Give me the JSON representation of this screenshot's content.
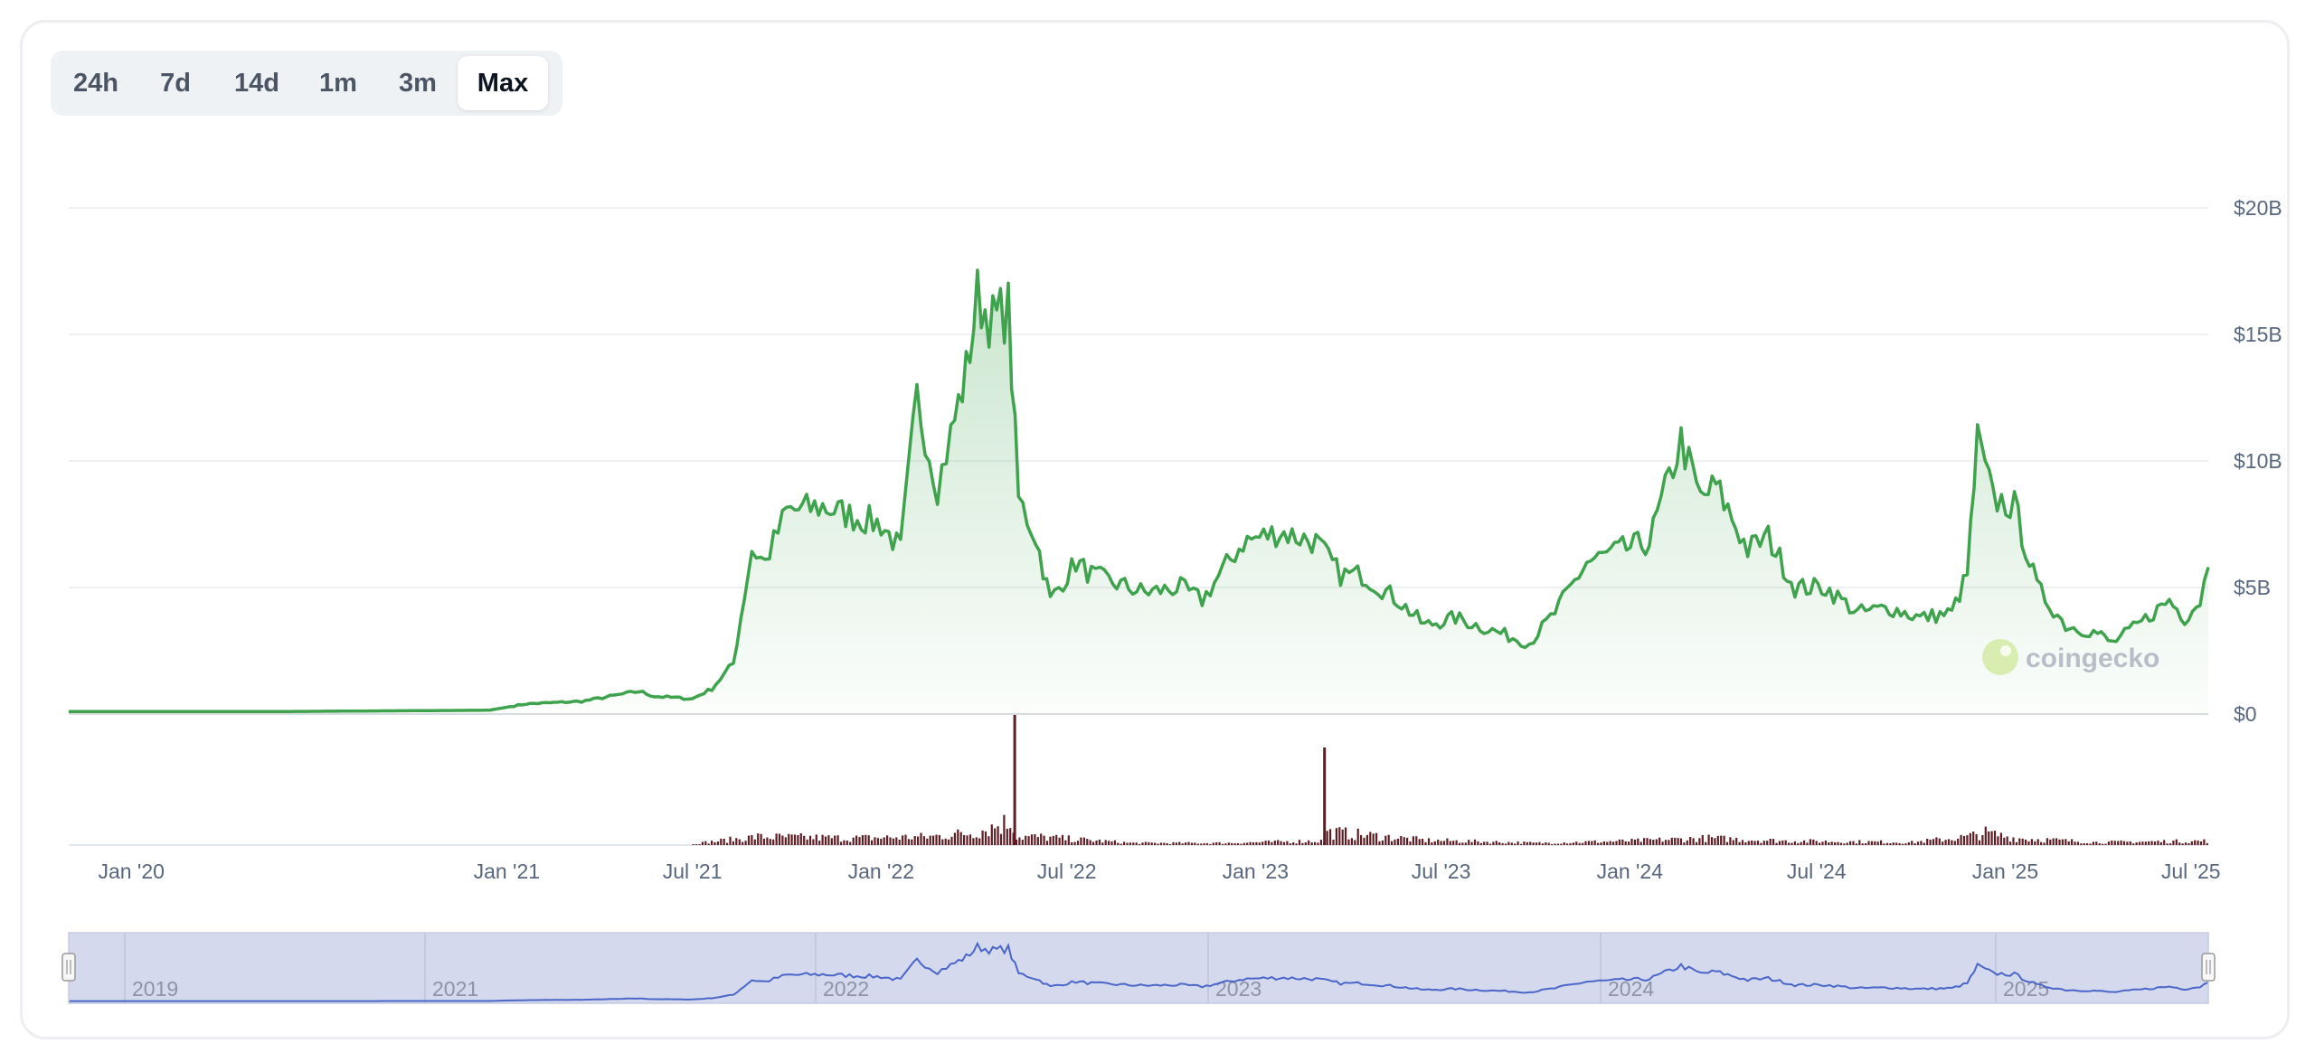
{
  "ranges": {
    "items": [
      {
        "label": "24h"
      },
      {
        "label": "7d"
      },
      {
        "label": "14d"
      },
      {
        "label": "1m"
      },
      {
        "label": "3m"
      },
      {
        "label": "Max"
      }
    ],
    "active": "Max"
  },
  "watermark": {
    "brand": "coingecko"
  },
  "colors": {
    "price_line": "#3fa34d",
    "price_fill": "#3fa34d",
    "volume_bar": "#5e1d23",
    "navigator_line": "#4a66c8",
    "navigator_fill": "#d4d9ee"
  },
  "chart_data": {
    "type": "area",
    "xlabel": "",
    "ylabel": "",
    "x_range": [
      "2019-11-01",
      "2025-07-18"
    ],
    "ylim": [
      0,
      20
    ],
    "y_unit": "B USD",
    "y_ticks": [
      "$0",
      "$5B",
      "$10B",
      "$15B",
      "$20B"
    ],
    "y_tick_values": [
      0,
      5,
      10,
      15,
      20
    ],
    "x_ticks": [
      "Jan '20",
      "Jan '21",
      "Jul '21",
      "Jan '22",
      "Jul '22",
      "Jan '23",
      "Jul '23",
      "Jan '24",
      "Jul '24",
      "Jan '25",
      "Jul '25"
    ],
    "x_tick_dates": [
      "2020-01-01",
      "2021-01-01",
      "2021-07-01",
      "2022-01-01",
      "2022-07-01",
      "2023-01-01",
      "2023-07-01",
      "2024-01-01",
      "2024-07-01",
      "2025-01-01",
      "2025-07-01"
    ],
    "series": [
      {
        "x": [
          "2019-11-01",
          "2020-06-01",
          "2020-12-15",
          "2021-01-20",
          "2021-03-15",
          "2021-05-10",
          "2021-05-25",
          "2021-07-01",
          "2021-07-20",
          "2021-08-10",
          "2021-08-28",
          "2021-09-10",
          "2021-10-01",
          "2021-11-05",
          "2021-12-05",
          "2022-01-01",
          "2022-01-20",
          "2022-02-05",
          "2022-02-25",
          "2022-03-10",
          "2022-03-25",
          "2022-04-05",
          "2022-04-20",
          "2022-05-05",
          "2022-05-15",
          "2022-06-01",
          "2022-06-15",
          "2022-07-10",
          "2022-07-25",
          "2022-08-15",
          "2022-09-15",
          "2022-10-20",
          "2022-11-10",
          "2022-12-20",
          "2023-01-25",
          "2023-03-01",
          "2023-03-25",
          "2023-04-15",
          "2023-05-20",
          "2023-06-15",
          "2023-07-15",
          "2023-08-20",
          "2023-09-25",
          "2023-10-20",
          "2023-11-20",
          "2023-12-25",
          "2024-01-20",
          "2024-02-20",
          "2024-03-10",
          "2024-03-25",
          "2024-04-25",
          "2024-05-15",
          "2024-06-10",
          "2024-07-10",
          "2024-08-10",
          "2024-09-10",
          "2024-10-10",
          "2024-11-10",
          "2024-11-25",
          "2024-12-05",
          "2024-12-20",
          "2025-01-10",
          "2025-02-01",
          "2025-03-01",
          "2025-04-01",
          "2025-04-15",
          "2025-05-10",
          "2025-06-10",
          "2025-06-25",
          "2025-07-10",
          "2025-07-18"
        ],
        "y": [
          0.1,
          0.1,
          0.15,
          0.4,
          0.5,
          0.9,
          0.7,
          0.6,
          1.0,
          2.0,
          6.5,
          6.0,
          8.0,
          8.2,
          7.8,
          7.5,
          6.5,
          12.5,
          9.0,
          11.0,
          13.5,
          16.5,
          15.5,
          16.0,
          8.5,
          7.0,
          4.5,
          6.0,
          5.5,
          5.2,
          4.8,
          5.0,
          4.5,
          6.8,
          7.2,
          6.8,
          5.5,
          5.5,
          4.5,
          3.5,
          3.8,
          3.3,
          2.8,
          4.0,
          6.0,
          6.5,
          6.8,
          10.8,
          8.5,
          9.0,
          6.5,
          7.0,
          5.0,
          5.0,
          4.0,
          4.2,
          3.8,
          4.0,
          5.5,
          10.8,
          8.5,
          8.2,
          5.0,
          3.5,
          3.2,
          2.8,
          3.5,
          4.5,
          3.8,
          4.5,
          5.8
        ]
      }
    ],
    "volume": {
      "x": [
        "2021-07-01",
        "2021-09-01",
        "2021-12-01",
        "2022-02-15",
        "2022-04-01",
        "2022-05-01",
        "2022-05-10",
        "2022-06-01",
        "2022-09-01",
        "2022-12-01",
        "2023-03-01",
        "2023-03-08",
        "2023-03-20",
        "2023-06-15",
        "2023-10-01",
        "2024-01-01",
        "2024-03-15",
        "2024-06-01",
        "2024-10-01",
        "2024-11-25",
        "2024-12-10",
        "2025-01-10",
        "2025-04-01",
        "2025-07-15"
      ],
      "values": [
        0.1,
        0.6,
        0.5,
        0.6,
        0.9,
        1.6,
        6.0,
        0.6,
        0.15,
        0.15,
        0.3,
        4.5,
        0.9,
        0.35,
        0.15,
        0.3,
        0.5,
        0.3,
        0.2,
        0.6,
        0.9,
        0.5,
        0.2,
        0.3
      ]
    },
    "navigator": {
      "labels": [
        "2019",
        "2021",
        "2022",
        "2023",
        "2024",
        "2025"
      ]
    }
  }
}
